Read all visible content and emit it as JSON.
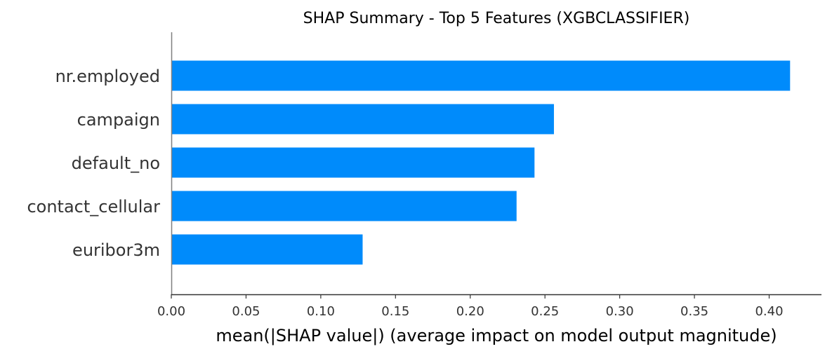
{
  "chart_data": {
    "type": "bar",
    "orientation": "horizontal",
    "title": "SHAP Summary - Top 5 Features (XGBCLASSIFIER)",
    "xlabel": "mean(|SHAP value|) (average impact on model output magnitude)",
    "ylabel": "",
    "categories": [
      "nr.employed",
      "campaign",
      "default_no",
      "contact_cellular",
      "euribor3m"
    ],
    "values": [
      0.414,
      0.256,
      0.243,
      0.231,
      0.128
    ],
    "xlim": [
      0.0,
      0.435
    ],
    "xticks": [
      "0.00",
      "0.05",
      "0.10",
      "0.15",
      "0.20",
      "0.25",
      "0.30",
      "0.35",
      "0.40"
    ],
    "bar_color": "#008bfb",
    "grid": false,
    "legend": "none"
  }
}
